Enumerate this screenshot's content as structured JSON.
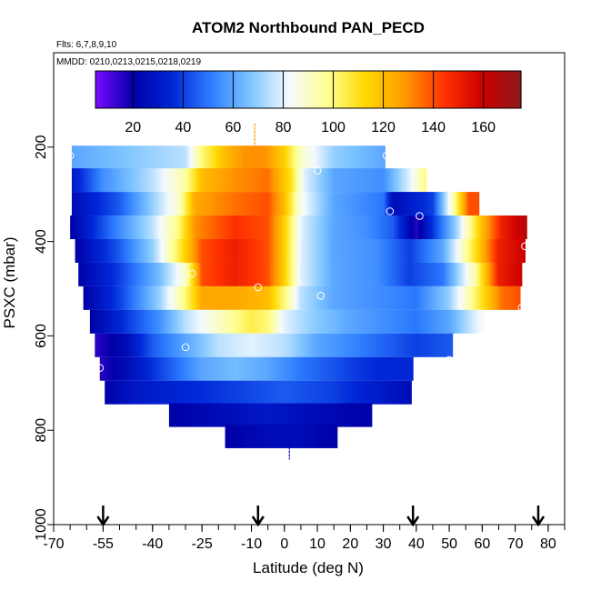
{
  "chart_data": {
    "type": "heatmap",
    "title": "ATOM2 Northbound PAN_PECD",
    "flights_note": "Flts: 6,7,8,9,10",
    "dates_note": "MMDD: 0210,0213,0215,0218,0219",
    "xlabel": "Latitude (deg N)",
    "ylabel": "PSXC (mbar)",
    "xlim": [
      -70,
      85
    ],
    "ylim": [
      1000,
      0
    ],
    "x_ticks": [
      -70,
      -55,
      -40,
      -25,
      -10,
      0,
      10,
      20,
      30,
      40,
      50,
      60,
      70,
      80
    ],
    "y_ticks": [
      200,
      400,
      600,
      800,
      1000
    ],
    "colorbar": {
      "range": [
        5,
        175
      ],
      "ticks": [
        20,
        40,
        60,
        80,
        100,
        120,
        140,
        160
      ],
      "colors": [
        "#7a0aff",
        "#0000a8",
        "#0028d8",
        "#2f7fff",
        "#7dc4ff",
        "#f4faff",
        "#ffff90",
        "#ffd700",
        "#ff9900",
        "#ff3300",
        "#cc0000",
        "#8b1a1a"
      ]
    },
    "rows": [
      {
        "p": 222,
        "x0": -64.5,
        "x1": 30.5,
        "segments": [
          [
            -64.5,
            60
          ],
          [
            -30,
            75
          ],
          [
            -25,
            100
          ],
          [
            -18,
            120
          ],
          [
            -12,
            130
          ],
          [
            -6,
            130
          ],
          [
            0,
            115
          ],
          [
            5,
            90
          ],
          [
            15,
            70
          ],
          [
            30.5,
            60
          ]
        ]
      },
      {
        "p": 270,
        "x0": -64.5,
        "x1": 43,
        "segments": [
          [
            -64.5,
            30
          ],
          [
            -55,
            55
          ],
          [
            -40,
            75
          ],
          [
            -30,
            95
          ],
          [
            -25,
            120
          ],
          [
            -15,
            130
          ],
          [
            -5,
            135
          ],
          [
            2,
            110
          ],
          [
            6,
            80
          ],
          [
            15,
            60
          ],
          [
            30,
            55
          ],
          [
            38,
            80
          ],
          [
            43,
            100
          ]
        ]
      },
      {
        "p": 320,
        "x0": -64.5,
        "x1": 59,
        "segments": [
          [
            -64.5,
            25
          ],
          [
            -50,
            45
          ],
          [
            -40,
            70
          ],
          [
            -32,
            90
          ],
          [
            -27,
            125
          ],
          [
            -15,
            135
          ],
          [
            -5,
            140
          ],
          [
            0,
            120
          ],
          [
            5,
            85
          ],
          [
            15,
            60
          ],
          [
            30,
            50
          ],
          [
            33,
            25
          ],
          [
            45,
            40
          ],
          [
            52,
            100
          ],
          [
            56,
            140
          ],
          [
            59,
            140
          ]
        ]
      },
      {
        "p": 370,
        "x0": -65,
        "x1": 73.5,
        "segments": [
          [
            -65,
            20
          ],
          [
            -52,
            50
          ],
          [
            -40,
            75
          ],
          [
            -32,
            100
          ],
          [
            -27,
            130
          ],
          [
            -15,
            145
          ],
          [
            -5,
            140
          ],
          [
            0,
            115
          ],
          [
            5,
            80
          ],
          [
            15,
            60
          ],
          [
            25,
            55
          ],
          [
            33,
            45
          ],
          [
            40,
            15
          ],
          [
            52,
            70
          ],
          [
            60,
            120
          ],
          [
            66,
            150
          ],
          [
            73.5,
            165
          ]
        ]
      },
      {
        "p": 420,
        "x0": -63.5,
        "x1": 73,
        "segments": [
          [
            -63.5,
            20
          ],
          [
            -50,
            45
          ],
          [
            -40,
            70
          ],
          [
            -32,
            105
          ],
          [
            -25,
            140
          ],
          [
            -15,
            150
          ],
          [
            -5,
            140
          ],
          [
            0,
            115
          ],
          [
            5,
            80
          ],
          [
            15,
            60
          ],
          [
            28,
            55
          ],
          [
            38,
            40
          ],
          [
            48,
            60
          ],
          [
            58,
            110
          ],
          [
            65,
            150
          ],
          [
            73,
            160
          ]
        ]
      },
      {
        "p": 470,
        "x0": -62.5,
        "x1": 72,
        "segments": [
          [
            -62.5,
            20
          ],
          [
            -50,
            40
          ],
          [
            -38,
            65
          ],
          [
            -30,
            90
          ],
          [
            -25,
            140
          ],
          [
            -15,
            150
          ],
          [
            -5,
            140
          ],
          [
            0,
            115
          ],
          [
            5,
            80
          ],
          [
            15,
            60
          ],
          [
            28,
            55
          ],
          [
            38,
            40
          ],
          [
            48,
            50
          ],
          [
            58,
            95
          ],
          [
            65,
            150
          ],
          [
            72,
            160
          ]
        ]
      },
      {
        "p": 520,
        "x0": -61,
        "x1": 71.5,
        "segments": [
          [
            -61,
            20
          ],
          [
            -50,
            40
          ],
          [
            -38,
            70
          ],
          [
            -30,
            100
          ],
          [
            -25,
            125
          ],
          [
            -15,
            125
          ],
          [
            -5,
            120
          ],
          [
            0,
            100
          ],
          [
            5,
            75
          ],
          [
            15,
            60
          ],
          [
            28,
            55
          ],
          [
            40,
            50
          ],
          [
            50,
            70
          ],
          [
            60,
            110
          ],
          [
            66,
            135
          ],
          [
            71.5,
            140
          ]
        ]
      },
      {
        "p": 570,
        "x0": -59,
        "x1": 60.5,
        "segments": [
          [
            -59,
            20
          ],
          [
            -50,
            35
          ],
          [
            -38,
            55
          ],
          [
            -30,
            75
          ],
          [
            -20,
            90
          ],
          [
            -10,
            105
          ],
          [
            -5,
            100
          ],
          [
            0,
            80
          ],
          [
            8,
            70
          ],
          [
            20,
            60
          ],
          [
            40,
            50
          ],
          [
            50,
            60
          ],
          [
            56,
            75
          ],
          [
            60.5,
            85
          ]
        ]
      },
      {
        "p": 620,
        "x0": -57.5,
        "x1": 51,
        "segments": [
          [
            -57.5,
            15
          ],
          [
            -48,
            25
          ],
          [
            -40,
            45
          ],
          [
            -30,
            60
          ],
          [
            -20,
            75
          ],
          [
            -10,
            80
          ],
          [
            0,
            75
          ],
          [
            10,
            60
          ],
          [
            25,
            50
          ],
          [
            40,
            40
          ],
          [
            51,
            45
          ]
        ]
      },
      {
        "p": 670,
        "x0": -56,
        "x1": 39,
        "segments": [
          [
            -56,
            15
          ],
          [
            -48,
            25
          ],
          [
            -35,
            45
          ],
          [
            -25,
            60
          ],
          [
            -15,
            65
          ],
          [
            -5,
            60
          ],
          [
            5,
            50
          ],
          [
            20,
            40
          ],
          [
            30,
            35
          ],
          [
            39,
            35
          ]
        ]
      },
      {
        "p": 720,
        "x0": -54.5,
        "x1": 38.5,
        "segments": [
          [
            -54.5,
            20
          ],
          [
            -45,
            30
          ],
          [
            -30,
            35
          ],
          [
            -15,
            40
          ],
          [
            0,
            45
          ],
          [
            15,
            40
          ],
          [
            30,
            30
          ],
          [
            38.5,
            25
          ]
        ]
      },
      {
        "p": 768,
        "x0": -35,
        "x1": 26.5,
        "segments": [
          [
            -35,
            20
          ],
          [
            -20,
            25
          ],
          [
            -5,
            30
          ],
          [
            10,
            25
          ],
          [
            26.5,
            20
          ]
        ]
      },
      {
        "p": 813,
        "x0": -18,
        "x1": 16,
        "segments": [
          [
            -18,
            20
          ],
          [
            -5,
            25
          ],
          [
            5,
            25
          ],
          [
            16,
            20
          ]
        ]
      }
    ],
    "points": [
      {
        "lat": -65,
        "p": 218
      },
      {
        "lat": 31,
        "p": 218
      },
      {
        "lat": 10,
        "p": 250
      },
      {
        "lat": 32,
        "p": 336
      },
      {
        "lat": 41,
        "p": 346
      },
      {
        "lat": -65,
        "p": 405
      },
      {
        "lat": 73,
        "p": 410
      },
      {
        "lat": -28,
        "p": 468
      },
      {
        "lat": -8,
        "p": 497
      },
      {
        "lat": 11,
        "p": 515
      },
      {
        "lat": 72,
        "p": 540
      },
      {
        "lat": -30,
        "p": 624
      },
      {
        "lat": 50,
        "p": 651
      },
      {
        "lat": -56,
        "p": 668
      }
    ],
    "ticks_top": [
      {
        "lat": -9,
        "p_from": 150,
        "p_to": 215,
        "color": "#ff9900"
      }
    ],
    "ticks_bottom": [
      {
        "lat": 1.5,
        "p_from": 812,
        "p_to": 862,
        "color": "#0000cc"
      }
    ],
    "arrows": [
      -55,
      -8,
      39,
      77
    ]
  }
}
